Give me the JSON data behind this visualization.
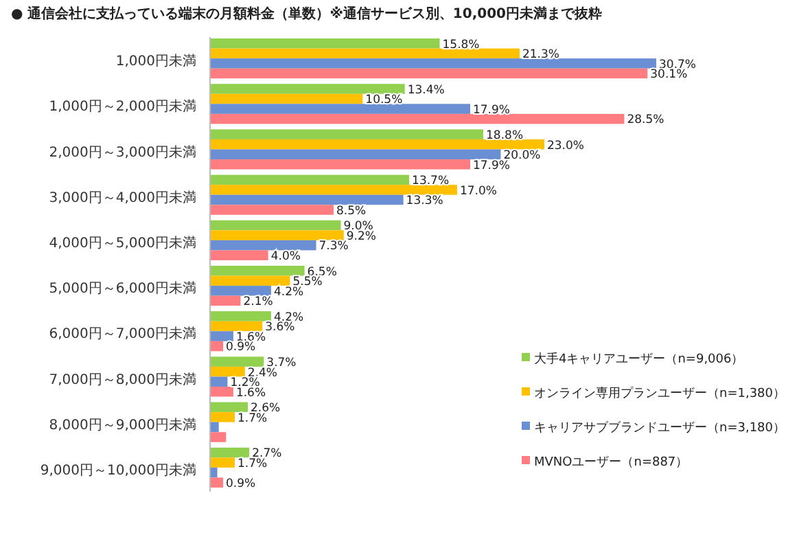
{
  "chart_data": {
    "type": "bar",
    "orientation": "horizontal",
    "title": "● 通信会社に支払っている端末の月額料金（単数）※通信サービス別、10,000円未満まで抜粋",
    "categories": [
      "1,000円未満",
      "1,000円～2,000円未満",
      "2,000円～3,000円未満",
      "3,000円～4,000円未満",
      "4,000円～5,000円未満",
      "5,000円～6,000円未満",
      "6,000円～7,000円未満",
      "7,000円～8,000円未満",
      "8,000円～9,000円未満",
      "9,000円～10,000円未満"
    ],
    "series": [
      {
        "name": "大手4キャリアユーザー（n=9,006）",
        "color": "#92d050",
        "values": [
          15.8,
          13.4,
          18.8,
          13.7,
          9.0,
          6.5,
          4.2,
          3.7,
          2.6,
          2.7
        ],
        "value_labels": [
          "15.8%",
          "13.4%",
          "18.8%",
          "13.7%",
          "9.0%",
          "6.5%",
          "4.2%",
          "3.7%",
          "2.6%",
          "2.7%"
        ]
      },
      {
        "name": "オンライン専用プランユーザー（n=1,380）",
        "color": "#ffc000",
        "values": [
          21.3,
          10.5,
          23.0,
          17.0,
          9.2,
          5.5,
          3.6,
          2.4,
          1.7,
          1.7
        ],
        "value_labels": [
          "21.3%",
          "10.5%",
          "23.0%",
          "17.0%",
          "9.2%",
          "5.5%",
          "3.6%",
          "2.4%",
          "1.7%",
          "1.7%"
        ]
      },
      {
        "name": "キャリアサブブランドユーザー（n=3,180）",
        "color": "#6a8fd3",
        "values": [
          30.7,
          17.9,
          20.0,
          13.3,
          7.3,
          4.2,
          1.6,
          1.2,
          0.6,
          0.5
        ],
        "value_labels": [
          "30.7%",
          "17.9%",
          "20.0%",
          "13.3%",
          "7.3%",
          "4.2%",
          "1.6%",
          "1.2%",
          null,
          null
        ]
      },
      {
        "name": "MVNOユーザー（n=887）",
        "color": "#ff7c80",
        "values": [
          30.1,
          28.5,
          17.9,
          8.5,
          4.0,
          2.1,
          0.9,
          1.6,
          1.1,
          0.9
        ],
        "value_labels": [
          "30.1%",
          "28.5%",
          "17.9%",
          "8.5%",
          "4.0%",
          "2.1%",
          "0.9%",
          "1.6%",
          null,
          "0.9%"
        ]
      }
    ],
    "legend": "right"
  }
}
